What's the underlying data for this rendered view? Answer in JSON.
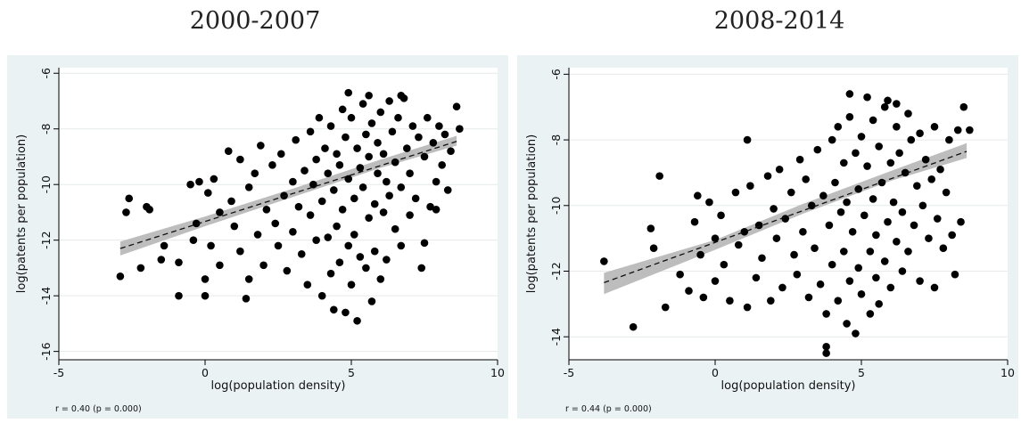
{
  "chart_data": [
    {
      "type": "scatter",
      "title": "2000-2007",
      "xlabel": "log(population density)",
      "ylabel": "log(patents per population)",
      "xlim": [
        -5,
        10
      ],
      "ylim": [
        -16.3,
        -5.8
      ],
      "xticks": [
        -5,
        0,
        5,
        10
      ],
      "yticks": [
        -6,
        -8,
        -10,
        -12,
        -14,
        -16
      ],
      "note": "r = 0.40  (p = 0.000)",
      "fit": {
        "x": [
          -2.9,
          8.6
        ],
        "y": [
          -12.3,
          -8.45
        ]
      },
      "ci_band": {
        "x": [
          -2.9,
          0,
          3,
          6,
          8.6
        ],
        "lower": [
          -12.55,
          -11.5,
          -10.45,
          -9.4,
          -8.6
        ],
        "upper": [
          -12.05,
          -11.15,
          -10.15,
          -9.1,
          -8.25
        ]
      },
      "points": [
        [
          -2.9,
          -13.3
        ],
        [
          -2.6,
          -10.5
        ],
        [
          -2.7,
          -11.0
        ],
        [
          -2.2,
          -13.0
        ],
        [
          -2.0,
          -10.8
        ],
        [
          -1.9,
          -10.9
        ],
        [
          -1.5,
          -12.7
        ],
        [
          -1.4,
          -12.2
        ],
        [
          -0.9,
          -14.0
        ],
        [
          -0.9,
          -12.8
        ],
        [
          -0.5,
          -10.0
        ],
        [
          -0.4,
          -12.0
        ],
        [
          -0.3,
          -11.4
        ],
        [
          -0.2,
          -9.9
        ],
        [
          0.0,
          -14.0
        ],
        [
          0.0,
          -13.4
        ],
        [
          0.1,
          -10.3
        ],
        [
          0.2,
          -12.2
        ],
        [
          0.3,
          -9.8
        ],
        [
          0.5,
          -11.0
        ],
        [
          0.5,
          -12.9
        ],
        [
          0.8,
          -8.8
        ],
        [
          0.9,
          -10.6
        ],
        [
          1.0,
          -11.5
        ],
        [
          1.2,
          -9.1
        ],
        [
          1.2,
          -12.4
        ],
        [
          1.4,
          -14.1
        ],
        [
          1.5,
          -13.4
        ],
        [
          1.5,
          -10.1
        ],
        [
          1.7,
          -9.6
        ],
        [
          1.8,
          -11.8
        ],
        [
          1.9,
          -8.6
        ],
        [
          2.0,
          -12.9
        ],
        [
          2.1,
          -10.9
        ],
        [
          2.3,
          -9.3
        ],
        [
          2.4,
          -11.4
        ],
        [
          2.5,
          -12.2
        ],
        [
          2.6,
          -8.9
        ],
        [
          2.7,
          -10.4
        ],
        [
          2.8,
          -13.1
        ],
        [
          3.0,
          -9.9
        ],
        [
          3.0,
          -11.7
        ],
        [
          3.1,
          -8.4
        ],
        [
          3.2,
          -10.8
        ],
        [
          3.3,
          -12.5
        ],
        [
          3.4,
          -9.5
        ],
        [
          3.5,
          -13.6
        ],
        [
          3.6,
          -8.1
        ],
        [
          3.6,
          -11.1
        ],
        [
          3.7,
          -10.0
        ],
        [
          3.8,
          -12.0
        ],
        [
          3.8,
          -9.1
        ],
        [
          3.9,
          -7.6
        ],
        [
          4.0,
          -14.0
        ],
        [
          4.0,
          -10.6
        ],
        [
          4.1,
          -8.7
        ],
        [
          4.2,
          -11.9
        ],
        [
          4.2,
          -9.6
        ],
        [
          4.3,
          -13.2
        ],
        [
          4.3,
          -7.9
        ],
        [
          4.4,
          -10.2
        ],
        [
          4.4,
          -14.5
        ],
        [
          4.5,
          -8.9
        ],
        [
          4.5,
          -11.5
        ],
        [
          4.6,
          -12.8
        ],
        [
          4.6,
          -9.3
        ],
        [
          4.7,
          -7.3
        ],
        [
          4.7,
          -10.9
        ],
        [
          4.8,
          -14.6
        ],
        [
          4.8,
          -8.3
        ],
        [
          4.9,
          -12.2
        ],
        [
          4.9,
          -9.8
        ],
        [
          5.0,
          -13.6
        ],
        [
          5.0,
          -7.6
        ],
        [
          5.1,
          -10.5
        ],
        [
          5.1,
          -11.8
        ],
        [
          5.2,
          -8.7
        ],
        [
          5.2,
          -14.9
        ],
        [
          5.3,
          -9.4
        ],
        [
          5.3,
          -12.6
        ],
        [
          5.4,
          -7.1
        ],
        [
          5.4,
          -10.1
        ],
        [
          5.5,
          -13.0
        ],
        [
          5.5,
          -8.2
        ],
        [
          5.6,
          -11.2
        ],
        [
          5.6,
          -9.0
        ],
        [
          5.7,
          -14.2
        ],
        [
          5.7,
          -7.8
        ],
        [
          5.8,
          -10.7
        ],
        [
          5.8,
          -12.4
        ],
        [
          5.9,
          -8.5
        ],
        [
          5.9,
          -9.6
        ],
        [
          6.0,
          -13.4
        ],
        [
          6.0,
          -7.4
        ],
        [
          6.1,
          -11.0
        ],
        [
          6.1,
          -8.9
        ],
        [
          6.2,
          -12.7
        ],
        [
          6.2,
          -9.9
        ],
        [
          6.3,
          -7.0
        ],
        [
          6.3,
          -10.4
        ],
        [
          6.4,
          -8.1
        ],
        [
          6.5,
          -11.6
        ],
        [
          6.5,
          -9.2
        ],
        [
          6.6,
          -7.6
        ],
        [
          6.7,
          -10.1
        ],
        [
          6.7,
          -12.2
        ],
        [
          6.8,
          -6.9
        ],
        [
          6.9,
          -8.7
        ],
        [
          7.0,
          -9.6
        ],
        [
          7.0,
          -11.1
        ],
        [
          7.1,
          -7.9
        ],
        [
          7.2,
          -10.5
        ],
        [
          7.3,
          -8.3
        ],
        [
          7.4,
          -13.0
        ],
        [
          7.5,
          -9.0
        ],
        [
          7.5,
          -12.1
        ],
        [
          7.6,
          -7.6
        ],
        [
          7.7,
          -10.8
        ],
        [
          7.8,
          -8.5
        ],
        [
          7.9,
          -9.9
        ],
        [
          7.9,
          -10.9
        ],
        [
          8.0,
          -7.9
        ],
        [
          8.1,
          -9.3
        ],
        [
          8.2,
          -8.2
        ],
        [
          8.3,
          -10.2
        ],
        [
          8.4,
          -8.8
        ],
        [
          8.6,
          -7.2
        ],
        [
          8.7,
          -8.0
        ],
        [
          4.9,
          -6.7
        ],
        [
          5.6,
          -6.8
        ],
        [
          6.7,
          -6.8
        ]
      ]
    },
    {
      "type": "scatter",
      "title": "2008-2014",
      "xlabel": "log(population density)",
      "ylabel": "log(patents per population)",
      "xlim": [
        -5,
        10
      ],
      "ylim": [
        -14.7,
        -5.8
      ],
      "xticks": [
        -5,
        0,
        5,
        10
      ],
      "yticks": [
        -6,
        -8,
        -10,
        -12,
        -14
      ],
      "note": "r = 0.44  (p = 0.000)",
      "fit": {
        "x": [
          -3.8,
          8.6
        ],
        "y": [
          -12.35,
          -8.35
        ]
      },
      "ci_band": {
        "x": [
          -3.8,
          0,
          3,
          6,
          8.6
        ],
        "lower": [
          -12.7,
          -11.35,
          -10.25,
          -9.25,
          -8.55
        ],
        "upper": [
          -12.05,
          -11.05,
          -9.95,
          -8.95,
          -8.1
        ]
      },
      "points": [
        [
          -3.8,
          -11.7
        ],
        [
          -2.8,
          -13.7
        ],
        [
          -2.2,
          -10.7
        ],
        [
          -2.1,
          -11.3
        ],
        [
          -1.9,
          -9.1
        ],
        [
          -1.7,
          -13.1
        ],
        [
          -1.2,
          -12.1
        ],
        [
          -0.9,
          -12.6
        ],
        [
          -0.7,
          -10.5
        ],
        [
          -0.6,
          -9.7
        ],
        [
          -0.5,
          -11.5
        ],
        [
          -0.4,
          -12.8
        ],
        [
          -0.2,
          -9.9
        ],
        [
          0.0,
          -11.0
        ],
        [
          0.0,
          -12.3
        ],
        [
          0.2,
          -10.3
        ],
        [
          0.3,
          -11.8
        ],
        [
          0.5,
          -12.9
        ],
        [
          0.7,
          -9.6
        ],
        [
          0.8,
          -11.2
        ],
        [
          1.0,
          -10.8
        ],
        [
          1.1,
          -8.0
        ],
        [
          1.1,
          -13.1
        ],
        [
          1.2,
          -9.4
        ],
        [
          1.4,
          -12.2
        ],
        [
          1.5,
          -10.6
        ],
        [
          1.6,
          -11.6
        ],
        [
          1.8,
          -9.1
        ],
        [
          1.9,
          -12.9
        ],
        [
          2.0,
          -10.1
        ],
        [
          2.1,
          -11.0
        ],
        [
          2.2,
          -8.9
        ],
        [
          2.3,
          -12.5
        ],
        [
          2.4,
          -10.4
        ],
        [
          2.6,
          -9.6
        ],
        [
          2.7,
          -11.5
        ],
        [
          2.8,
          -12.1
        ],
        [
          2.9,
          -8.6
        ],
        [
          3.0,
          -10.8
        ],
        [
          3.1,
          -9.2
        ],
        [
          3.2,
          -12.8
        ],
        [
          3.3,
          -10.0
        ],
        [
          3.4,
          -11.3
        ],
        [
          3.5,
          -8.3
        ],
        [
          3.6,
          -12.4
        ],
        [
          3.7,
          -9.7
        ],
        [
          3.8,
          -13.3
        ],
        [
          3.8,
          -14.3
        ],
        [
          3.8,
          -14.5
        ],
        [
          3.9,
          -10.6
        ],
        [
          4.0,
          -8.0
        ],
        [
          4.0,
          -11.8
        ],
        [
          4.1,
          -9.3
        ],
        [
          4.2,
          -12.9
        ],
        [
          4.2,
          -7.6
        ],
        [
          4.3,
          -10.2
        ],
        [
          4.4,
          -11.4
        ],
        [
          4.4,
          -8.7
        ],
        [
          4.5,
          -13.6
        ],
        [
          4.5,
          -9.9
        ],
        [
          4.6,
          -7.3
        ],
        [
          4.6,
          -12.3
        ],
        [
          4.7,
          -10.8
        ],
        [
          4.8,
          -8.4
        ],
        [
          4.8,
          -13.9
        ],
        [
          4.9,
          -9.5
        ],
        [
          4.9,
          -11.9
        ],
        [
          5.0,
          -7.9
        ],
        [
          5.0,
          -12.7
        ],
        [
          5.1,
          -10.3
        ],
        [
          5.2,
          -6.7
        ],
        [
          5.2,
          -8.8
        ],
        [
          5.3,
          -11.4
        ],
        [
          5.3,
          -13.3
        ],
        [
          5.4,
          -9.8
        ],
        [
          5.4,
          -7.4
        ],
        [
          5.5,
          -12.2
        ],
        [
          5.5,
          -10.9
        ],
        [
          5.6,
          -8.2
        ],
        [
          5.6,
          -13.0
        ],
        [
          5.7,
          -9.3
        ],
        [
          5.8,
          -11.7
        ],
        [
          5.8,
          -7.0
        ],
        [
          5.9,
          -10.5
        ],
        [
          6.0,
          -8.7
        ],
        [
          6.0,
          -12.5
        ],
        [
          6.1,
          -9.9
        ],
        [
          6.2,
          -7.6
        ],
        [
          6.2,
          -11.1
        ],
        [
          6.3,
          -8.4
        ],
        [
          6.4,
          -10.2
        ],
        [
          6.4,
          -12.0
        ],
        [
          6.5,
          -9.0
        ],
        [
          6.6,
          -7.2
        ],
        [
          6.6,
          -11.4
        ],
        [
          6.7,
          -8.0
        ],
        [
          6.8,
          -10.6
        ],
        [
          6.9,
          -9.4
        ],
        [
          7.0,
          -12.3
        ],
        [
          7.0,
          -7.8
        ],
        [
          7.1,
          -10.0
        ],
        [
          7.2,
          -8.6
        ],
        [
          7.3,
          -11.0
        ],
        [
          7.4,
          -9.2
        ],
        [
          7.5,
          -12.5
        ],
        [
          7.5,
          -7.6
        ],
        [
          7.6,
          -10.4
        ],
        [
          7.7,
          -8.9
        ],
        [
          7.8,
          -11.3
        ],
        [
          7.9,
          -9.6
        ],
        [
          8.0,
          -8.0
        ],
        [
          8.1,
          -10.9
        ],
        [
          8.2,
          -12.1
        ],
        [
          8.3,
          -7.7
        ],
        [
          8.4,
          -10.5
        ],
        [
          8.5,
          -7.0
        ],
        [
          8.7,
          -7.7
        ],
        [
          5.9,
          -6.8
        ],
        [
          6.2,
          -6.9
        ],
        [
          4.6,
          -6.6
        ]
      ]
    }
  ]
}
